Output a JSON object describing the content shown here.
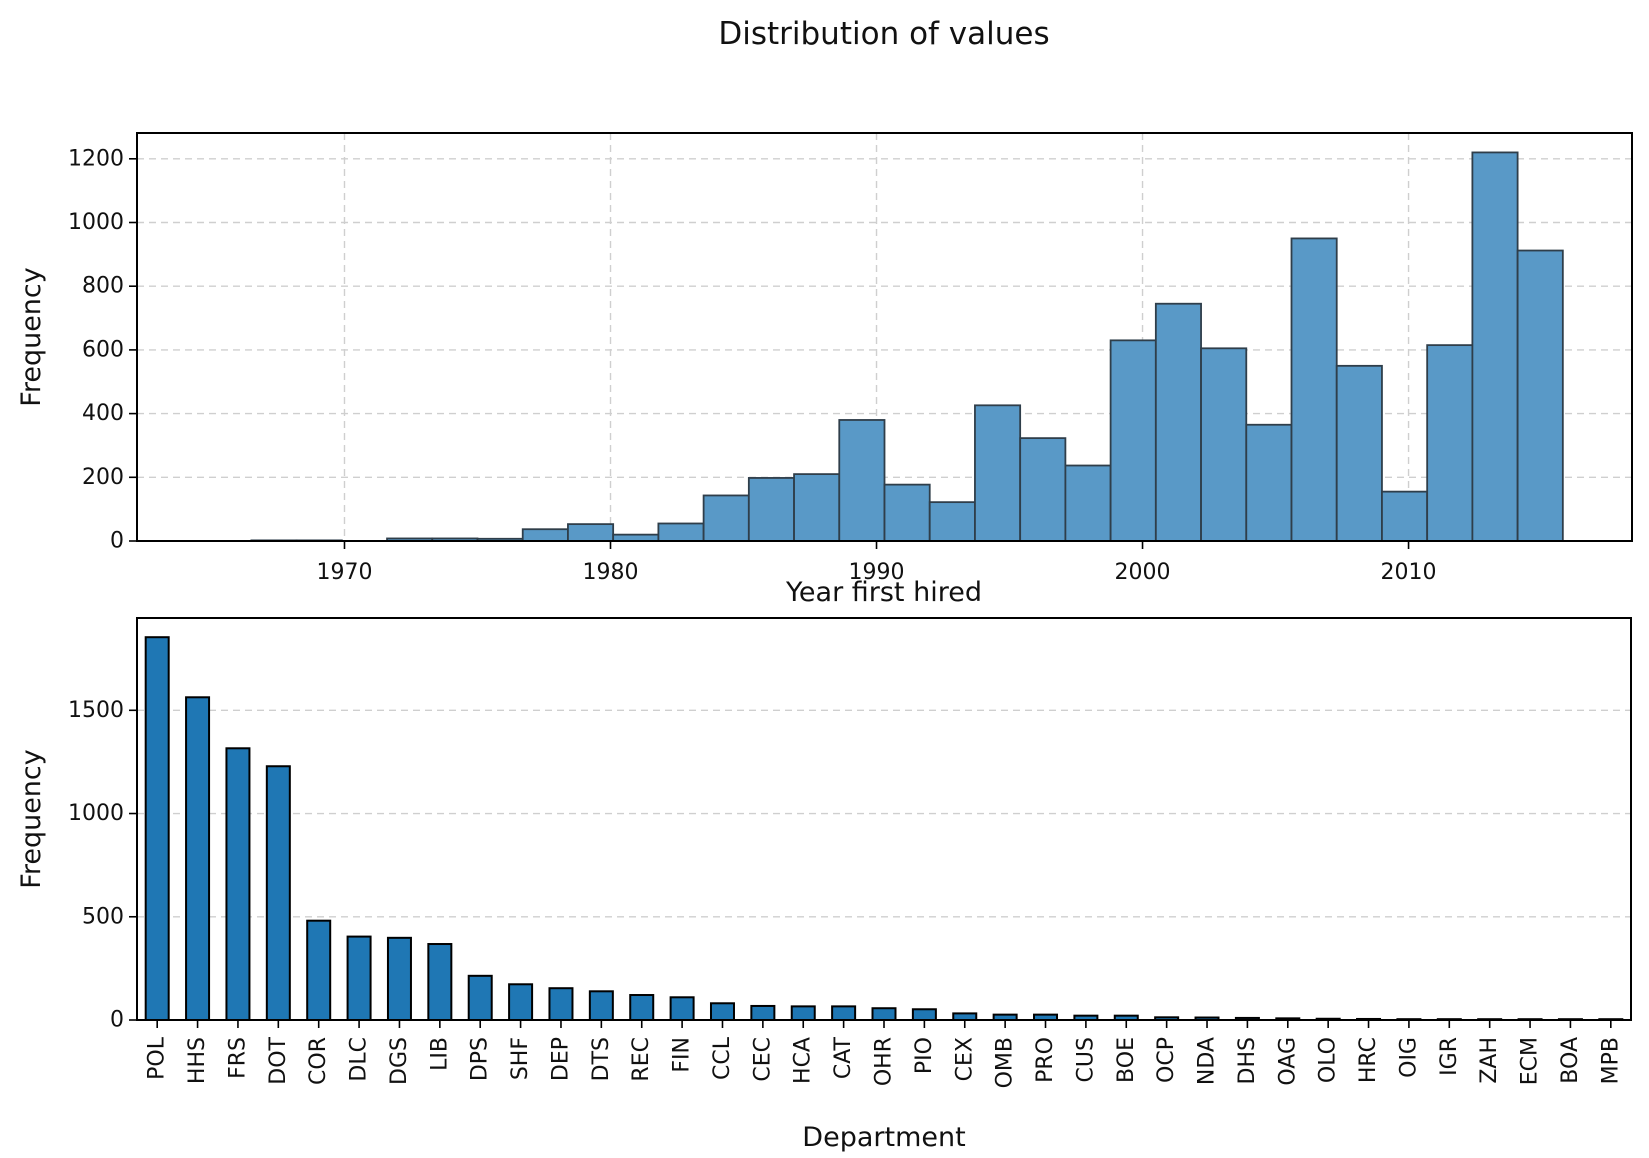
{
  "figure": {
    "title": "Distribution of values",
    "background": "#ffffff"
  },
  "colors": {
    "hist_fill": "#5999c7",
    "hist_edge": "#2f3e4a",
    "bar_fill": "#1f77b4",
    "bar_edge": "#000000",
    "grid": "#cfcfcf",
    "spine": "#000000",
    "tick": "#000000",
    "text": "#111111"
  },
  "chart_data": [
    {
      "type": "bar",
      "subtype": "histogram",
      "title": "",
      "xlabel": "Year first hired",
      "ylabel": "Frequency",
      "bin_start": 1966.5,
      "bin_width": 1.7,
      "bin_end": 2015.8,
      "values": [
        2,
        2,
        0,
        8,
        8,
        7,
        37,
        53,
        20,
        55,
        143,
        198,
        210,
        380,
        177,
        122,
        426,
        323,
        237,
        630,
        745,
        605,
        365,
        950,
        550,
        155,
        615,
        1220,
        912
      ],
      "xticks": [
        1970,
        1980,
        1990,
        2000,
        2010
      ],
      "yticks": [
        0,
        200,
        400,
        600,
        800,
        1000,
        1200
      ],
      "xlim": [
        1962.2,
        2018.4
      ],
      "ylim": [
        0,
        1281
      ],
      "grid": "both",
      "grid_style": "dashed",
      "legend": "none"
    },
    {
      "type": "bar",
      "title": "",
      "xlabel": "Department",
      "ylabel": "Frequency",
      "categories": [
        "POL",
        "HHS",
        "FRS",
        "DOT",
        "COR",
        "DLC",
        "DGS",
        "LIB",
        "DPS",
        "SHF",
        "DEP",
        "DTS",
        "REC",
        "FIN",
        "CCL",
        "CEC",
        "HCA",
        "CAT",
        "OHR",
        "PIO",
        "CEX",
        "OMB",
        "PRO",
        "CUS",
        "BOE",
        "OCP",
        "NDA",
        "DHS",
        "OAG",
        "OLO",
        "HRC",
        "OIG",
        "IGR",
        "ZAH",
        "ECM",
        "BOA",
        "MPB"
      ],
      "values": [
        1854,
        1563,
        1316,
        1229,
        481,
        404,
        398,
        368,
        214,
        173,
        154,
        139,
        121,
        110,
        81,
        68,
        66,
        66,
        57,
        52,
        32,
        26,
        26,
        21,
        21,
        13,
        12,
        10,
        8,
        6,
        5,
        4,
        4,
        3,
        2,
        2,
        1
      ],
      "yticks": [
        0,
        500,
        1000,
        1500
      ],
      "ylim": [
        0,
        1947
      ],
      "xtick_rotation": 90,
      "grid": "y",
      "grid_style": "dashed",
      "legend": "none"
    }
  ]
}
